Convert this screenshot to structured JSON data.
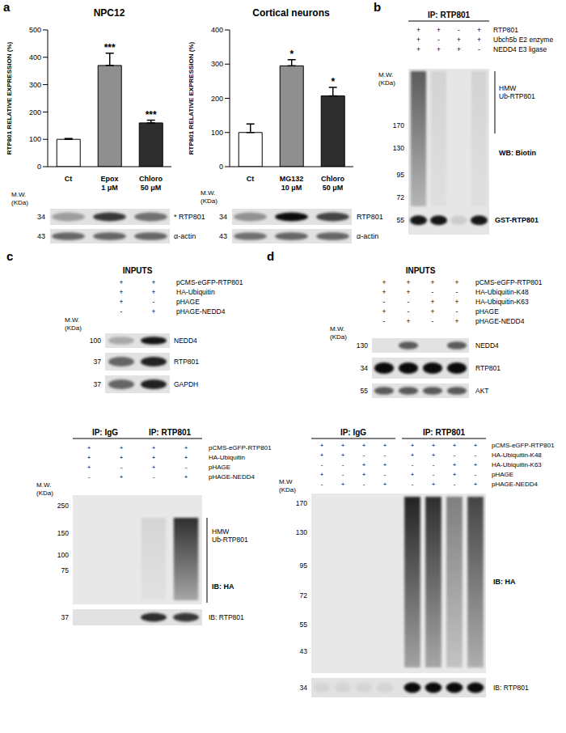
{
  "chart_data": [
    {
      "type": "bar",
      "title": "NPC12",
      "categories": [
        "Ct",
        "Epox 1 μM",
        "Chloro 50 μM"
      ],
      "values": [
        100,
        370,
        160
      ],
      "errors": [
        3,
        45,
        10
      ],
      "colors": [
        "#ffffff",
        "#8f8f8f",
        "#2e2e2e"
      ],
      "annotations": [
        null,
        "***",
        "***"
      ],
      "ylabel": "RTP801 RELATIVE EXPRESSION (%)",
      "ylim": [
        0,
        500
      ],
      "yticks": [
        0,
        100,
        200,
        300,
        400,
        500
      ]
    },
    {
      "type": "bar",
      "title": "Cortical neurons",
      "categories": [
        "Ct",
        "MG132 10 μM",
        "Chloro 50 μM"
      ],
      "values": [
        100,
        295,
        207
      ],
      "errors": [
        25,
        18,
        25
      ],
      "colors": [
        "#ffffff",
        "#8f8f8f",
        "#2e2e2e"
      ],
      "annotations": [
        null,
        "*",
        "*"
      ],
      "ylabel": "RTP801 RELATIVE EXPRESSION (%)",
      "ylim": [
        0,
        400
      ],
      "yticks": [
        0,
        100,
        200,
        300,
        400
      ]
    }
  ],
  "panels": {
    "a": {
      "label": "a",
      "blots": [
        {
          "mw_label": "M.W.\n(KDa)",
          "strips": [
            {
              "marker": 34,
              "name": "* RTP801",
              "bands": [
                0.3,
                0.75,
                0.5
              ]
            },
            {
              "marker": 43,
              "name": "α-actin",
              "bands": [
                0.55,
                0.55,
                0.55
              ]
            }
          ]
        },
        {
          "mw_label": "M.W.\n(KDa)",
          "strips": [
            {
              "marker": 34,
              "name": "RTP801",
              "bands": [
                0.35,
                0.95,
                0.7
              ]
            },
            {
              "marker": 43,
              "name": "α-actin",
              "bands": [
                0.5,
                0.55,
                0.55
              ]
            }
          ]
        }
      ]
    },
    "b": {
      "label": "b",
      "ip_groups": [
        "IP: RTP801"
      ],
      "conditions": [
        {
          "name": "RTP801",
          "signs": [
            "+",
            "+",
            "-",
            "+"
          ]
        },
        {
          "name": "Ubch5b E2 enzyme",
          "signs": [
            "+",
            "-",
            "+",
            "+"
          ]
        },
        {
          "name": "NEDD4 E3 ligase",
          "signs": [
            "+",
            "+",
            "+",
            "-"
          ]
        }
      ],
      "mw_label": "M.W.\n(KDa)",
      "markers": [
        170,
        130,
        95,
        72
      ],
      "smear": [
        0.6,
        0.08,
        0,
        0.08
      ],
      "smear_label": "HMW\nUb-RTP801",
      "blot_label": "WB: Biotin",
      "band": {
        "marker": 55,
        "name": "GST-RTP801",
        "bands": [
          0.9,
          0.9,
          0.1,
          0.9
        ]
      }
    },
    "c": {
      "label": "c",
      "inputs": {
        "title": "INPUTS",
        "conditions": [
          {
            "name": "pCMS-eGFP-RTP801",
            "signs": [
              "+",
              "+"
            ]
          },
          {
            "name": "HA-Ubiquitin",
            "signs": [
              "+",
              "+"
            ]
          },
          {
            "name": "pHAGE",
            "signs": [
              "+",
              "-"
            ]
          },
          {
            "name": "pHAGE-NEDD4",
            "signs": [
              "-",
              "+"
            ]
          }
        ],
        "mw_label": "M.W.\n(KDa)",
        "strips": [
          {
            "marker": 100,
            "name": "NEDD4",
            "bands": [
              0.25,
              0.9
            ]
          },
          {
            "marker": 37,
            "name": "RTP801",
            "bands": [
              0.55,
              0.85
            ]
          },
          {
            "marker": 37,
            "name": "GAPDH",
            "bands": [
              0.55,
              0.85
            ]
          }
        ]
      },
      "ip": {
        "groups": [
          "IP: IgG",
          "IP: RTP801"
        ],
        "conditions": [
          {
            "name": "pCMS-eGFP-RTP801",
            "signs": [
              "+",
              "+",
              "+",
              "+"
            ]
          },
          {
            "name": "HA-Ubiquitin",
            "signs": [
              "+",
              "+",
              "+",
              "+"
            ]
          },
          {
            "name": "pHAGE",
            "signs": [
              "+",
              "-",
              "+",
              "-"
            ]
          },
          {
            "name": "pHAGE-NEDD4",
            "signs": [
              "-",
              "+",
              "-",
              "+"
            ]
          }
        ],
        "mw_label": "M.W.\n(KDa)",
        "markers": [
          250,
          150,
          100,
          75
        ],
        "smear": [
          0,
          0,
          0.08,
          0.8
        ],
        "smear_label": "HMW\nUb-RTP801",
        "blot_label": "IB: HA",
        "strip": {
          "marker": 37,
          "name": "IB: RTP801",
          "bands": [
            0,
            0,
            0.8,
            0.75
          ]
        }
      }
    },
    "d": {
      "label": "d",
      "inputs": {
        "title": "INPUTS",
        "conditions": [
          {
            "name": "pCMS-eGFP-RTP801",
            "signs": [
              "+",
              "+",
              "+",
              "+"
            ]
          },
          {
            "name": "HA-Ubiquitin-K48",
            "signs": [
              "+",
              "+",
              "-",
              "-"
            ]
          },
          {
            "name": "HA-Ubiquitin-K63",
            "signs": [
              "-",
              "-",
              "+",
              "+"
            ]
          },
          {
            "name": "pHAGE",
            "signs": [
              "+",
              "-",
              "+",
              "-"
            ]
          },
          {
            "name": "pHAGE-NEDD4",
            "signs": [
              "-",
              "+",
              "-",
              "+"
            ]
          }
        ],
        "mw_label": "M.W.\n(KDa)",
        "strips": [
          {
            "marker": 130,
            "name": "NEDD4",
            "bands": [
              0,
              0.6,
              0,
              0.6
            ]
          },
          {
            "marker": 34,
            "name": "RTP801",
            "bands": [
              0.95,
              0.95,
              0.95,
              0.95
            ]
          },
          {
            "marker": 55,
            "name": "AKT",
            "bands": [
              0.6,
              0.6,
              0.6,
              0.6
            ]
          }
        ]
      },
      "ip": {
        "groups": [
          "IP: IgG",
          "IP: RTP801"
        ],
        "conditions": [
          {
            "name": "pCMS-eGFP-RTP801",
            "signs": [
              "+",
              "+",
              "+",
              "+",
              "+",
              "+",
              "+",
              "+"
            ]
          },
          {
            "name": "HA-Ubiquitin-K48",
            "signs": [
              "+",
              "+",
              "-",
              "-",
              "+",
              "+",
              "-",
              "-"
            ]
          },
          {
            "name": "HA-Ubiquitin-K63",
            "signs": [
              "-",
              "-",
              "+",
              "+",
              "-",
              "-",
              "+",
              "+"
            ]
          },
          {
            "name": "pHAGE",
            "signs": [
              "+",
              "-",
              "+",
              "-",
              "+",
              "-",
              "+",
              "-"
            ]
          },
          {
            "name": "pHAGE-NEDD4",
            "signs": [
              "-",
              "+",
              "-",
              "+",
              "-",
              "+",
              "-",
              "+"
            ]
          }
        ],
        "mw_label": "M.W\n(KDa)",
        "markers": [
          170,
          130,
          95,
          72,
          55,
          43
        ],
        "smear": [
          0,
          0,
          0,
          0,
          0.85,
          0.8,
          0.45,
          0.7
        ],
        "blot_label": "IB: HA",
        "strip": {
          "marker": 34,
          "name": "IB: RTP801",
          "bands": [
            0.05,
            0.05,
            0.05,
            0.05,
            0.95,
            0.95,
            0.95,
            0.95
          ]
        }
      }
    }
  }
}
